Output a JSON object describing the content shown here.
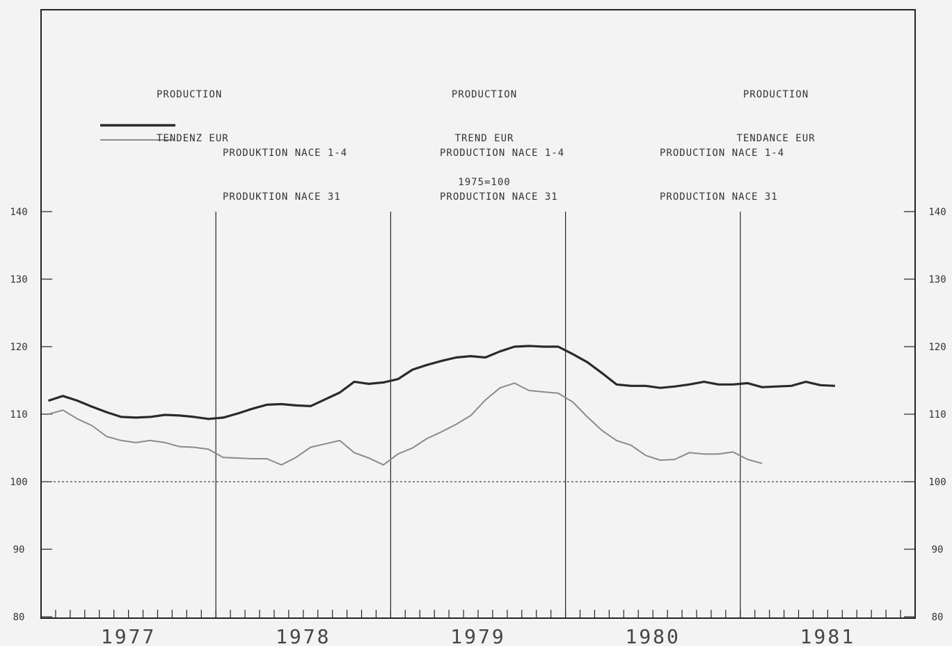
{
  "headings": {
    "de": {
      "line1": "PRODUCTION",
      "line2": "TENDENZ EUR"
    },
    "it": {
      "line1": "PRODUCTION",
      "line2": "TREND EUR",
      "line3": "1975=100"
    },
    "fr": {
      "line1": "PRODUCTION",
      "line2": "TENDANCE EUR"
    }
  },
  "legend_blocks": {
    "de": {
      "series1": "PRODUKTION NACE 1-4",
      "series2": "PRODUKTION NACE 31"
    },
    "it": {
      "series1": "PRODUCTION NACE 1-4",
      "series2": "PRODUCTION NACE 31"
    },
    "fr": {
      "series1": "PRODUCTION NACE 1-4",
      "series2": "PRODUCTION NACE 31"
    }
  },
  "colors": {
    "series1": "#2a2a2a",
    "series2": "#8a8a8a",
    "axis": "#222222",
    "reference": "#444444"
  },
  "chart_data": {
    "type": "line",
    "x_unit": "month",
    "x_start": "1977-01",
    "years": [
      "1977",
      "1978",
      "1979",
      "1980",
      "1981"
    ],
    "ylim": [
      80,
      140
    ],
    "yticks": [
      80,
      90,
      100,
      110,
      120,
      130,
      140
    ],
    "reference_line": 100,
    "grid": false,
    "series": [
      {
        "name": "PRODUKTION NACE 1-4",
        "values": [
          112,
          112.7,
          112,
          111.1,
          110.3,
          109.6,
          109.5,
          109.6,
          109.9,
          109.8,
          109.6,
          109.3,
          109.5,
          110.1,
          110.8,
          111.4,
          111.5,
          111.3,
          111.2,
          112.2,
          113.2,
          114.8,
          114.5,
          114.7,
          115.2,
          116.6,
          117.3,
          117.9,
          118.4,
          118.6,
          118.4,
          119.3,
          120,
          120.1,
          120,
          120,
          118.9,
          117.7,
          116.1,
          114.4,
          114.2,
          114.2,
          113.9,
          114.1,
          114.4,
          114.8,
          114.4,
          114.4,
          114.6,
          114,
          114.1,
          114.2,
          114.8,
          114.3,
          114.2
        ]
      },
      {
        "name": "PRODUKTION NACE 31",
        "values": [
          110,
          110.6,
          109.3,
          108.3,
          106.7,
          106.1,
          105.8,
          106.1,
          105.8,
          105.2,
          105.1,
          104.8,
          103.6,
          103.5,
          103.4,
          103.4,
          102.5,
          103.6,
          105.1,
          105.6,
          106.1,
          104.3,
          103.5,
          102.5,
          104.1,
          105,
          106.4,
          107.4,
          108.5,
          109.8,
          112.1,
          113.9,
          114.6,
          113.5,
          113.3,
          113.1,
          111.8,
          109.6,
          107.6,
          106.1,
          105.4,
          103.9,
          103.2,
          103.3,
          104.3,
          104.1,
          104.1,
          104.4,
          103.3,
          102.7
        ]
      }
    ]
  }
}
